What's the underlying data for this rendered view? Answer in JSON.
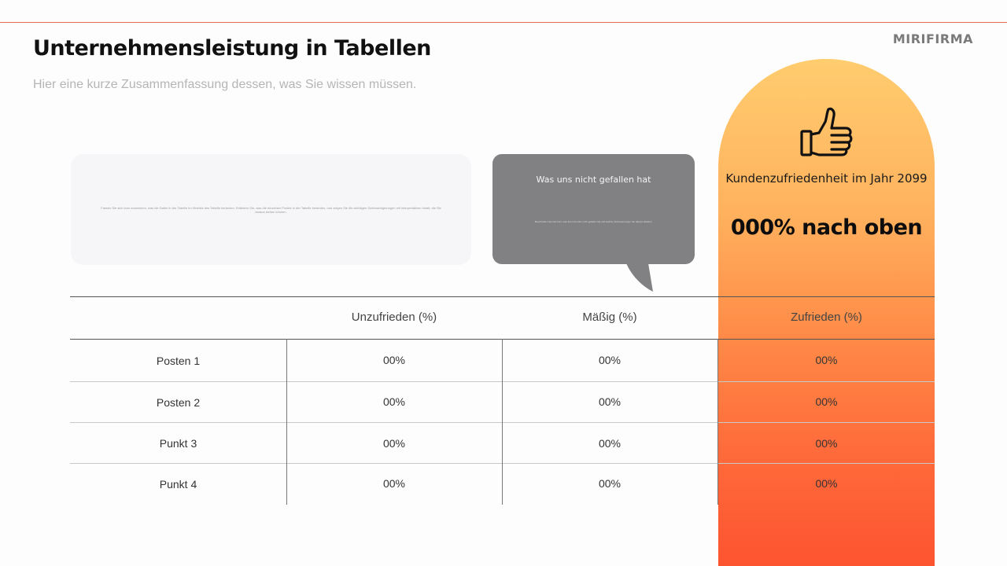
{
  "brand": "MIRIFIRMA",
  "title": "Unternehmensleistung in Tabellen",
  "subtitle": "Hier eine kurze Zusammenfassung dessen, was Sie wissen müssen.",
  "summary_card": {
    "text": "Fassen Sie sich kurz zusammen, was die Daten in der Tabelle im Hinblick des Tabelle bedeuten. Erläutern Sie, was die einzelnen Punkte in der Tabelle bedeuten, und zeigen Sie die wichtigen Schlussfolgerungen mit interpretativen Inhalt, die Sie daraus ziehen können."
  },
  "bubble": {
    "title": "Was uns nicht gefallen hat",
    "text": "Beschreiben Sie hier kurz, was Ihren Kunden nicht gefallen hat und welche Verbesserungen Sie daraus ableiten."
  },
  "highlight": {
    "label": "Kundenzufriedenheit im Jahr 2099",
    "stat": "000% nach oben",
    "icon": "thumbs-up-icon"
  },
  "table": {
    "columns": [
      "Unzufrieden (%)",
      "Mäßig (%)",
      "Zufrieden (%)"
    ],
    "rows": [
      {
        "label": "Posten 1",
        "values": [
          "00%",
          "00%",
          "00%"
        ]
      },
      {
        "label": "Posten 2",
        "values": [
          "00%",
          "00%",
          "00%"
        ]
      },
      {
        "label": "Punkt 3",
        "values": [
          "00%",
          "00%",
          "00%"
        ]
      },
      {
        "label": "Punkt 4",
        "values": [
          "00%",
          "00%",
          "00%"
        ]
      }
    ]
  },
  "colors": {
    "accent_line": "#e36a4a",
    "arch_top": "#ffcc6e",
    "arch_bottom": "#fd5430",
    "bubble": "#818083"
  }
}
